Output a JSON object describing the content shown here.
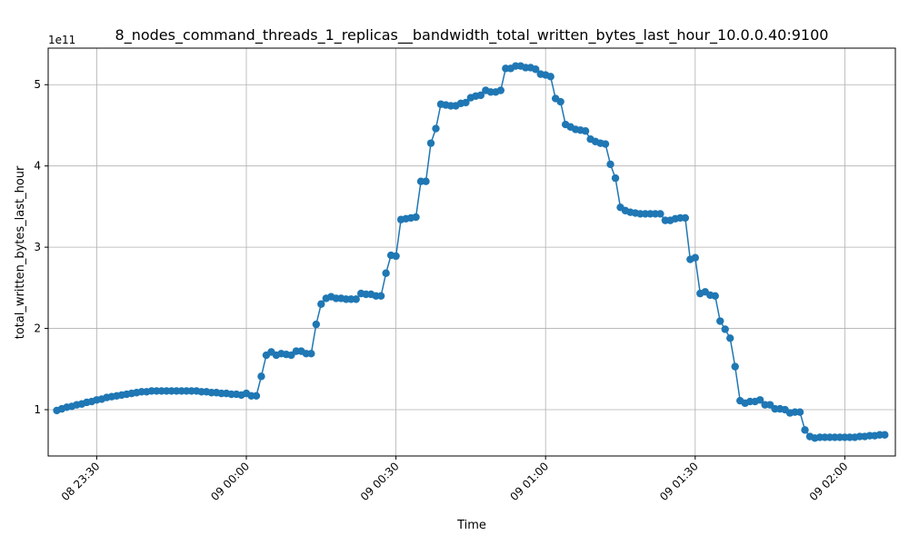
{
  "chart_data": {
    "type": "line",
    "title": "8_nodes_command_threads_1_replicas__bandwidth_total_written_bytes_last_hour_10.0.0.40:9100",
    "xlabel": "Time",
    "ylabel": "total_written_bytes_last_hour",
    "y_offset_label": "1e11",
    "y_multiplier": 100000000000,
    "ylim": [
      0.43,
      5.45
    ],
    "xlim": [
      "2024-01-08 23:20:16",
      "2024-01-09 02:10:08"
    ],
    "grid": true,
    "series_color": "#1f77b4",
    "xticks": [
      {
        "t": "2024-01-08 23:30:00",
        "label": "08 23:30"
      },
      {
        "t": "2024-01-09 00:00:00",
        "label": "09 00:00"
      },
      {
        "t": "2024-01-09 00:30:00",
        "label": "09 00:30"
      },
      {
        "t": "2024-01-09 01:00:00",
        "label": "09 01:00"
      },
      {
        "t": "2024-01-09 01:30:00",
        "label": "09 01:30"
      },
      {
        "t": "2024-01-09 02:00:00",
        "label": "09 02:00"
      }
    ],
    "yticks": [
      {
        "v": 1,
        "label": "1"
      },
      {
        "v": 2,
        "label": "2"
      },
      {
        "v": 3,
        "label": "3"
      },
      {
        "v": 4,
        "label": "4"
      },
      {
        "v": 5,
        "label": "5"
      }
    ],
    "series": [
      {
        "start": "2024-01-08 23:22:00",
        "step_seconds": 60,
        "values": [
          0.99,
          1.01,
          1.03,
          1.04,
          1.06,
          1.07,
          1.09,
          1.1,
          1.12,
          1.13,
          1.15,
          1.16,
          1.17,
          1.18,
          1.19,
          1.2,
          1.21,
          1.22,
          1.22,
          1.23,
          1.23,
          1.23,
          1.23,
          1.23,
          1.23,
          1.23,
          1.23,
          1.23,
          1.23,
          1.22,
          1.22,
          1.21,
          1.21,
          1.2,
          1.2,
          1.19,
          1.19,
          1.18,
          1.2,
          1.17,
          1.17,
          1.41,
          1.67,
          1.71,
          1.67,
          1.69,
          1.68,
          1.67,
          1.72,
          1.72,
          1.69,
          1.69,
          2.05,
          2.3,
          2.37,
          2.39,
          2.37,
          2.37,
          2.36,
          2.36,
          2.36,
          2.43,
          2.42,
          2.42,
          2.4,
          2.4,
          2.68,
          2.9,
          2.89,
          3.34,
          3.35,
          3.36,
          3.37,
          3.81,
          3.81,
          4.28,
          4.46,
          4.76,
          4.75,
          4.74,
          4.74,
          4.77,
          4.78,
          4.84,
          4.86,
          4.87,
          4.93,
          4.91,
          4.91,
          4.93,
          5.2,
          5.2,
          5.23,
          5.23,
          5.21,
          5.21,
          5.19,
          5.13,
          5.12,
          5.1,
          4.83,
          4.79,
          4.51,
          4.48,
          4.45,
          4.44,
          4.43,
          4.33,
          4.3,
          4.28,
          4.27,
          4.02,
          3.85,
          3.49,
          3.45,
          3.43,
          3.42,
          3.41,
          3.41,
          3.41,
          3.41,
          3.41,
          3.33,
          3.33,
          3.35,
          3.36,
          3.36,
          2.85,
          2.87,
          2.43,
          2.45,
          2.41,
          2.4,
          2.09,
          1.99,
          1.88,
          1.53,
          1.11,
          1.08,
          1.1,
          1.1,
          1.12,
          1.06,
          1.06,
          1.01,
          1.01,
          1.0,
          0.96,
          0.97,
          0.97,
          0.75,
          0.67,
          0.65,
          0.66,
          0.66,
          0.66,
          0.66,
          0.66,
          0.66,
          0.66,
          0.66,
          0.67,
          0.67,
          0.68,
          0.68,
          0.69,
          0.69
        ]
      }
    ]
  }
}
